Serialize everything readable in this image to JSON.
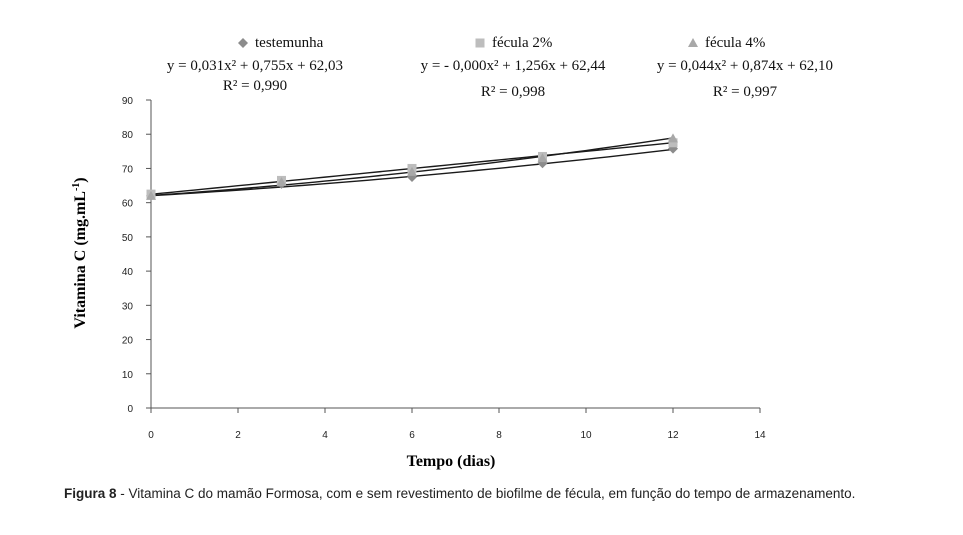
{
  "chart_data": {
    "type": "scatter",
    "xlabel": "Tempo (dias)",
    "ylabel": "Vitamina C (mg.mL",
    "ylabel_sup": "-1",
    "ylabel_end": ")",
    "xlim": [
      0,
      14
    ],
    "ylim": [
      0,
      90
    ],
    "x_ticks": [
      0,
      2,
      4,
      6,
      8,
      10,
      12,
      14
    ],
    "y_ticks": [
      0,
      10,
      20,
      30,
      40,
      50,
      60,
      70,
      80,
      90
    ],
    "grid": false,
    "legend_position": "top",
    "series": [
      {
        "name": "testemunha",
        "marker": "diamond",
        "color": "#8c8c8c",
        "x": [
          0,
          3,
          6,
          9,
          12
        ],
        "y": [
          62.0,
          65.5,
          67.5,
          71.5,
          75.8
        ],
        "equation": "y = 0,031x² + 0,755x + 62,03",
        "r2": "R² = 0,990",
        "fit": [
          0.031,
          0.755,
          62.03
        ]
      },
      {
        "name": "fécula 2%",
        "marker": "square",
        "color": "#bdbdbd",
        "x": [
          0,
          3,
          6,
          9,
          12
        ],
        "y": [
          62.5,
          66.5,
          70.0,
          73.5,
          77.5
        ],
        "equation": "y = - 0,000x² + 1,256x + 62,44",
        "r2": "R² = 0,998",
        "fit": [
          0.0,
          1.256,
          62.44
        ]
      },
      {
        "name": "fécula 4%",
        "marker": "triangle",
        "color": "#a8a8a8",
        "x": [
          0,
          3,
          6,
          9,
          12
        ],
        "y": [
          62.0,
          66.0,
          69.0,
          73.0,
          78.8
        ],
        "equation": "y = 0,044x² + 0,874x + 62,10",
        "r2": "R² = 0,997",
        "fit": [
          0.044,
          0.874,
          62.1
        ]
      }
    ]
  },
  "caption": {
    "label": "Figura 8",
    "text": " - Vitamina C do mamão Formosa, com e sem revestimento de biofilme de fécula, em função do tempo de armazenamento."
  }
}
